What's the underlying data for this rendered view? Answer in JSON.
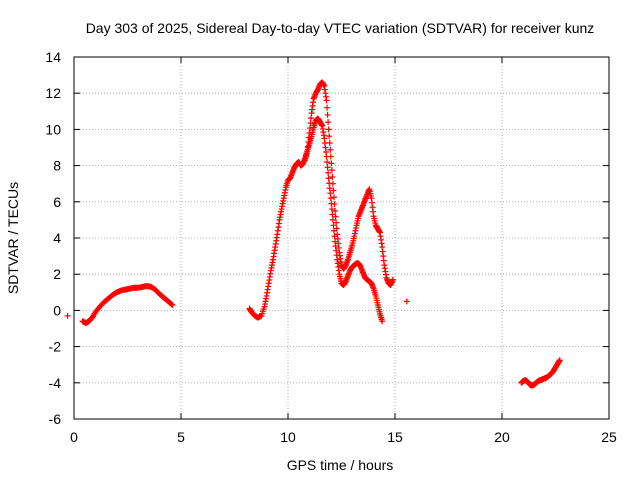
{
  "chart_data": {
    "type": "scatter",
    "title": "Day 303 of 2025, Sidereal Day-to-day VTEC variation (SDTVAR) for receiver kunz",
    "xlabel": "GPS time / hours",
    "ylabel": "SDTVAR / TECUs",
    "xlim": [
      0,
      25
    ],
    "ylim": [
      -6,
      14
    ],
    "xticks": [
      0,
      5,
      10,
      15,
      20,
      25
    ],
    "yticks": [
      -6,
      -4,
      -2,
      0,
      2,
      4,
      6,
      8,
      10,
      12,
      14
    ],
    "grid": true,
    "marker": "plus",
    "color": "#ff0000",
    "series": [
      {
        "name": "segment-1",
        "x": [
          -0.3,
          0.4,
          0.55,
          0.7,
          0.85,
          1.0,
          1.2,
          1.4,
          1.6,
          1.8,
          2.0,
          2.2,
          2.4,
          2.6,
          2.8,
          3.0,
          3.2,
          3.4,
          3.6,
          3.8,
          4.0,
          4.2,
          4.4,
          4.6
        ],
        "y": [
          -0.3,
          -0.6,
          -0.7,
          -0.6,
          -0.4,
          -0.1,
          0.2,
          0.45,
          0.65,
          0.85,
          1.0,
          1.1,
          1.15,
          1.2,
          1.25,
          1.25,
          1.3,
          1.35,
          1.3,
          1.15,
          0.9,
          0.7,
          0.5,
          0.3
        ]
      },
      {
        "name": "segment-2",
        "x": [
          8.2,
          8.3,
          8.45,
          8.6,
          8.75,
          8.9,
          9.0,
          9.1,
          9.2,
          9.3,
          9.4,
          9.5,
          9.6,
          9.7,
          9.8,
          9.9,
          10.0,
          10.1,
          10.2,
          10.3,
          10.4,
          10.5,
          10.6,
          10.7,
          10.8,
          10.9,
          11.0,
          11.1,
          11.2,
          11.3,
          11.4,
          11.5,
          11.6,
          11.7,
          11.8,
          11.9,
          12.0,
          12.1,
          12.2,
          12.3,
          12.4,
          12.5,
          12.6,
          12.7,
          12.8,
          12.9,
          13.0,
          13.1,
          13.2,
          13.3,
          13.4,
          13.5,
          13.6,
          13.7,
          13.8,
          13.9,
          14.0,
          14.1,
          14.2,
          14.3,
          14.4
        ],
        "y": [
          0.1,
          -0.1,
          -0.3,
          -0.4,
          -0.3,
          0.2,
          0.8,
          1.5,
          2.2,
          2.8,
          3.5,
          4.2,
          5.0,
          5.6,
          6.2,
          6.8,
          7.2,
          7.3,
          7.6,
          7.9,
          8.1,
          8.2,
          8.0,
          8.1,
          8.4,
          8.8,
          9.2,
          9.6,
          10.1,
          10.5,
          10.6,
          10.4,
          10.2,
          9.5,
          8.5,
          7.3,
          6.2,
          5.0,
          3.8,
          2.8,
          2.0,
          1.5,
          1.4,
          1.6,
          1.9,
          2.2,
          2.4,
          2.5,
          2.6,
          2.6,
          2.4,
          2.1,
          1.8,
          1.7,
          1.6,
          1.5,
          1.2,
          0.8,
          0.3,
          -0.2,
          -0.6
        ]
      },
      {
        "name": "segment-3",
        "x": [
          10.8,
          10.9,
          11.0,
          11.1,
          11.2,
          11.3,
          11.4,
          11.5,
          11.6,
          11.7,
          11.8,
          11.9,
          12.0,
          12.1,
          12.2,
          12.3,
          12.4,
          12.5,
          12.6,
          12.7,
          12.8,
          12.9,
          13.0,
          13.1,
          13.2,
          13.3,
          13.4,
          13.5,
          13.6,
          13.7,
          13.8,
          13.9,
          14.0,
          14.1,
          14.2,
          14.3,
          14.4,
          14.5,
          14.6,
          14.7,
          14.8,
          14.9,
          15.55
        ],
        "y": [
          8.3,
          8.8,
          9.8,
          10.9,
          11.7,
          12.0,
          12.2,
          12.5,
          12.6,
          12.4,
          11.6,
          10.0,
          8.5,
          7.0,
          5.5,
          4.2,
          3.2,
          2.5,
          2.3,
          2.5,
          2.8,
          3.2,
          3.6,
          4.1,
          4.7,
          5.2,
          5.5,
          5.8,
          6.1,
          6.4,
          6.7,
          6.2,
          5.2,
          4.7,
          4.5,
          4.3,
          3.5,
          2.5,
          1.8,
          1.5,
          1.4,
          1.7,
          0.5
        ]
      },
      {
        "name": "segment-4",
        "x": [
          20.9,
          21.0,
          21.1,
          21.2,
          21.3,
          21.4,
          21.5,
          21.6,
          21.7,
          21.8,
          21.9,
          22.0,
          22.1,
          22.2,
          22.3,
          22.4,
          22.5,
          22.6,
          22.7
        ],
        "y": [
          -4.0,
          -3.9,
          -3.85,
          -3.95,
          -4.1,
          -4.15,
          -4.1,
          -4.0,
          -3.9,
          -3.85,
          -3.8,
          -3.75,
          -3.7,
          -3.6,
          -3.5,
          -3.35,
          -3.15,
          -2.95,
          -2.75
        ]
      }
    ]
  }
}
